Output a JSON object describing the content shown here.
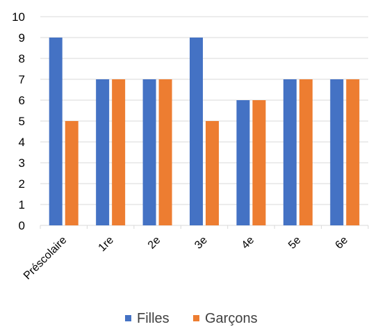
{
  "chart_data": {
    "type": "bar",
    "categories": [
      "Préscolaire",
      "1re",
      "2e",
      "3e",
      "4e",
      "5e",
      "6e"
    ],
    "series": [
      {
        "name": "Filles",
        "values": [
          9,
          7,
          7,
          9,
          6,
          7,
          7
        ],
        "color": "#4472C4"
      },
      {
        "name": "Garçons",
        "values": [
          5,
          7,
          7,
          5,
          6,
          7,
          7
        ],
        "color": "#ED7D31"
      }
    ],
    "title": "",
    "xlabel": "",
    "ylabel": "",
    "ylim": [
      0,
      10
    ],
    "yticks": [
      "0",
      "1",
      "2",
      "3",
      "4",
      "5",
      "6",
      "7",
      "8",
      "9",
      "10"
    ],
    "grid": true,
    "legend_position": "bottom"
  }
}
